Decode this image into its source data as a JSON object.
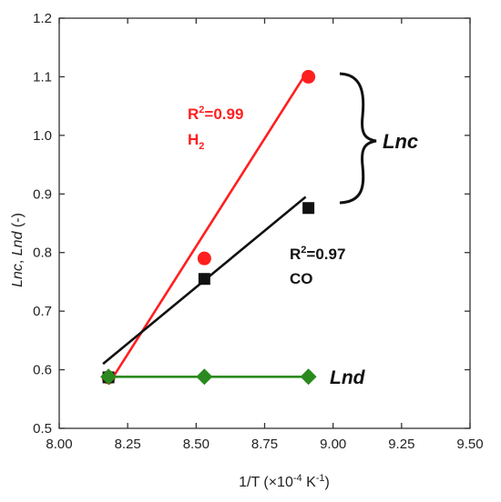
{
  "chart_data": {
    "type": "scatter",
    "xlabel": {
      "pre": "1/T (×10",
      "exp1": "-4",
      "mid": " K",
      "exp2": "-1",
      "post": ")"
    },
    "ylabel": {
      "a": "Lnc",
      "sep": ", ",
      "b": "Lnd",
      "unit": " (-)"
    },
    "xlim": [
      8.0,
      9.5
    ],
    "ylim": [
      0.5,
      1.2
    ],
    "xticks": [
      "8.00",
      "8.25",
      "8.50",
      "8.75",
      "9.00",
      "9.25",
      "9.50"
    ],
    "yticks": [
      "0.5",
      "0.6",
      "0.7",
      "0.8",
      "0.9",
      "1.0",
      "1.1",
      "1.2"
    ],
    "grid": false,
    "series": [
      {
        "marker": "circle",
        "color": "#ff1f1f",
        "points": [
          {
            "x": 8.18,
            "y": 0.587
          },
          {
            "x": 8.53,
            "y": 0.79
          },
          {
            "x": 8.91,
            "y": 1.1
          }
        ],
        "fit": {
          "x1": 8.18,
          "y1": 0.575,
          "x2": 8.9,
          "y2": 1.105
        },
        "annotation": {
          "r2_label": "R",
          "r2_sup": "2",
          "r2_value": "=0.99",
          "name": "H",
          "name_sub": "2"
        }
      },
      {
        "marker": "square",
        "color": "#111111",
        "points": [
          {
            "x": 8.18,
            "y": 0.587
          },
          {
            "x": 8.53,
            "y": 0.755
          },
          {
            "x": 8.91,
            "y": 0.876
          }
        ],
        "fit": {
          "x1": 8.16,
          "y1": 0.61,
          "x2": 8.9,
          "y2": 0.895
        },
        "annotation": {
          "r2_label": "R",
          "r2_sup": "2",
          "r2_value": "=0.97",
          "name": "CO"
        }
      },
      {
        "marker": "diamond",
        "color": "#2a8a1e",
        "points": [
          {
            "x": 8.18,
            "y": 0.588
          },
          {
            "x": 8.53,
            "y": 0.588
          },
          {
            "x": 8.91,
            "y": 0.588
          }
        ],
        "fit": {
          "x1": 8.18,
          "y1": 0.588,
          "x2": 8.91,
          "y2": 0.588
        },
        "annotation": {
          "name": "Lnd"
        }
      }
    ],
    "brace_label": "Lnc"
  }
}
